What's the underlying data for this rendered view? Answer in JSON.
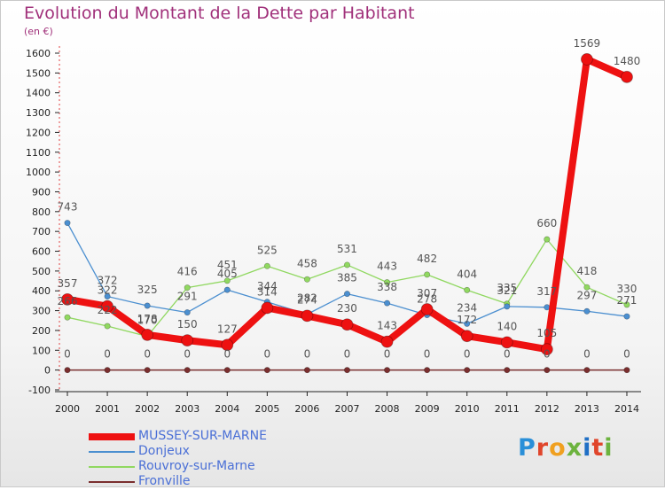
{
  "title": "Evolution du Montant de la Dette par Habitant",
  "unit": "(en €)",
  "logo_text": "Proxiti",
  "logo_colors": [
    "#2a8fd8",
    "#e0452b",
    "#f0a020",
    "#6cb33e",
    "#1f6fc5",
    "#e0452b",
    "#6cb33e"
  ],
  "chart_data": {
    "type": "line",
    "title": "Evolution du Montant de la Dette par Habitant",
    "ylabel": "(en €)",
    "xlabel": "",
    "ylim": [
      -100,
      1600
    ],
    "yticks": [
      "-100",
      "0",
      "100",
      "200",
      "300",
      "400",
      "500",
      "600",
      "700",
      "800",
      "900",
      "1000",
      "1100",
      "1200",
      "1300",
      "1400",
      "1500",
      "1600"
    ],
    "categories": [
      "2000",
      "2001",
      "2002",
      "2003",
      "2004",
      "2005",
      "2006",
      "2007",
      "2008",
      "2009",
      "2010",
      "2011",
      "2012",
      "2013",
      "2014"
    ],
    "series": [
      {
        "name": "Fronville",
        "color": "#7a2e2e",
        "values": [
          0,
          0,
          0,
          0,
          0,
          0,
          0,
          0,
          0,
          0,
          0,
          0,
          0,
          0,
          0
        ],
        "labels": [
          "0",
          "0",
          "0",
          "0",
          "0",
          "0",
          "0",
          "0",
          "0",
          "0",
          "0",
          "0",
          "0",
          "0",
          "0"
        ]
      },
      {
        "name": "Rouvroy-sur-Marne",
        "color": "#90d860",
        "values": [
          266,
          222,
          170,
          416,
          451,
          525,
          458,
          531,
          443,
          482,
          404,
          335,
          660,
          418,
          330
        ],
        "labels": [
          "266",
          "222",
          "170",
          "416",
          "451",
          "525",
          "458",
          "531",
          "443",
          "482",
          "404",
          "335",
          "660",
          "418",
          "330"
        ]
      },
      {
        "name": "Donjeux",
        "color": "#4b8fd0",
        "values": [
          743,
          372,
          325,
          291,
          405,
          344,
          282,
          385,
          338,
          278,
          234,
          321,
          317,
          297,
          271
        ],
        "labels": [
          "743",
          "372",
          "325",
          "291",
          "405",
          "344",
          "282",
          "385",
          "338",
          "278",
          "234",
          "321",
          "317",
          "297",
          "271"
        ]
      },
      {
        "name": "MUSSEY-SUR-MARNE",
        "color": "#ee1111",
        "values": [
          357,
          322,
          178,
          150,
          127,
          314,
          274,
          230,
          143,
          307,
          172,
          140,
          105,
          1569,
          1480
        ],
        "labels": [
          "357",
          "322",
          "178",
          "150",
          "127",
          "314",
          "274",
          "230",
          "143",
          "307",
          "172",
          "140",
          "105",
          "1569",
          "1480"
        ]
      }
    ],
    "legend": [
      "MUSSEY-SUR-MARNE",
      "Donjeux",
      "Rouvroy-sur-Marne",
      "Fronville"
    ],
    "legend_position": "bottom-left",
    "grid": false
  }
}
